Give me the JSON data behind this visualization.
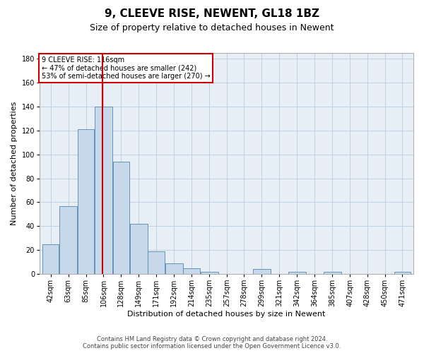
{
  "title1": "9, CLEEVE RISE, NEWENT, GL18 1BZ",
  "title2": "Size of property relative to detached houses in Newent",
  "xlabel": "Distribution of detached houses by size in Newent",
  "ylabel": "Number of detached properties",
  "footer1": "Contains HM Land Registry data © Crown copyright and database right 2024.",
  "footer2": "Contains public sector information licensed under the Open Government Licence v3.0.",
  "annotation_line1": "9 CLEEVE RISE: 116sqm",
  "annotation_line2": "← 47% of detached houses are smaller (242)",
  "annotation_line3": "53% of semi-detached houses are larger (270) →",
  "bar_color": "#c8d8eb",
  "bar_edge_color": "#5588aa",
  "vline_color": "#cc0000",
  "vline_x": 116,
  "annotation_box_edge": "#cc0000",
  "categories": [
    "42sqm",
    "63sqm",
    "85sqm",
    "106sqm",
    "128sqm",
    "149sqm",
    "171sqm",
    "192sqm",
    "214sqm",
    "235sqm",
    "257sqm",
    "278sqm",
    "299sqm",
    "321sqm",
    "342sqm",
    "364sqm",
    "385sqm",
    "407sqm",
    "428sqm",
    "450sqm",
    "471sqm"
  ],
  "bin_edges": [
    42,
    63,
    85,
    106,
    128,
    149,
    171,
    192,
    214,
    235,
    257,
    278,
    299,
    321,
    342,
    364,
    385,
    407,
    428,
    450,
    471,
    492
  ],
  "values": [
    25,
    57,
    121,
    140,
    94,
    42,
    19,
    9,
    5,
    2,
    0,
    0,
    4,
    0,
    2,
    0,
    2,
    0,
    0,
    0,
    2
  ],
  "ylim": [
    0,
    185
  ],
  "yticks": [
    0,
    20,
    40,
    60,
    80,
    100,
    120,
    140,
    160,
    180
  ],
  "background_color": "#ffffff",
  "plot_bg_color": "#e8eef6",
  "grid_color": "#b8cce0",
  "title1_fontsize": 11,
  "title2_fontsize": 9,
  "xlabel_fontsize": 8,
  "ylabel_fontsize": 8,
  "tick_fontsize": 7,
  "annotation_fontsize": 7,
  "footer_fontsize": 6
}
